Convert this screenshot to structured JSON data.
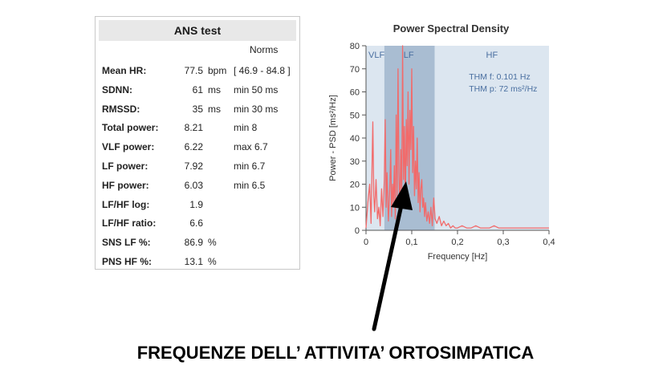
{
  "ans": {
    "title": "ANS test",
    "norms_header": "Norms",
    "rows": [
      {
        "label": "Mean HR:",
        "value": "77.5",
        "unit": "bpm",
        "norm": "[ 46.9 - 84.8 ]"
      },
      {
        "label": "SDNN:",
        "value": "61",
        "unit": "ms",
        "norm": "min 50 ms"
      },
      {
        "label": "RMSSD:",
        "value": "35",
        "unit": "ms",
        "norm": "min 30 ms"
      },
      {
        "label": "Total power:",
        "value": "8.21",
        "unit": "",
        "norm": "min 8"
      },
      {
        "label": "VLF power:",
        "value": "6.22",
        "unit": "",
        "norm": "max 6.7"
      },
      {
        "label": "LF power:",
        "value": "7.92",
        "unit": "",
        "norm": "min 6.7"
      },
      {
        "label": "HF power:",
        "value": "6.03",
        "unit": "",
        "norm": "min 6.5"
      },
      {
        "label": "LF/HF log:",
        "value": "1.9",
        "unit": "",
        "norm": ""
      },
      {
        "label": "LF/HF ratio:",
        "value": "6.6",
        "unit": "",
        "norm": ""
      },
      {
        "label": "SNS LF %:",
        "value": "86.9",
        "unit": "%",
        "norm": ""
      },
      {
        "label": "PNS HF %:",
        "value": "13.1",
        "unit": "%",
        "norm": ""
      }
    ]
  },
  "chart_data": {
    "type": "line",
    "title": "Power Spectral Density",
    "xlabel": "Frequency [Hz]",
    "ylabel": "Power - PSD [ms²/Hz]",
    "xlim": [
      0,
      0.4
    ],
    "ylim": [
      0,
      80
    ],
    "x_ticks": [
      0,
      0.1,
      0.2,
      0.3,
      0.4
    ],
    "x_tick_labels": [
      "0",
      "0,1",
      "0,2",
      "0,3",
      "0,4"
    ],
    "y_ticks": [
      0,
      10,
      20,
      30,
      40,
      50,
      60,
      70,
      80
    ],
    "bands": [
      {
        "name": "VLF",
        "from": 0.0,
        "to": 0.04,
        "color": "#dce6f0"
      },
      {
        "name": "LF",
        "from": 0.04,
        "to": 0.15,
        "color": "#a9bdd2"
      },
      {
        "name": "HF",
        "from": 0.15,
        "to": 0.4,
        "color": "#dce6f0"
      }
    ],
    "annotations": [
      "THM f: 0.101 Hz",
      "THM p: 72 ms²/Hz"
    ],
    "series": [
      {
        "color": "#f26a6a",
        "x": [
          0.0,
          0.004,
          0.008,
          0.011,
          0.015,
          0.017,
          0.019,
          0.022,
          0.025,
          0.028,
          0.031,
          0.034,
          0.037,
          0.04,
          0.042,
          0.044,
          0.046,
          0.049,
          0.052,
          0.054,
          0.056,
          0.058,
          0.06,
          0.062,
          0.064,
          0.066,
          0.068,
          0.07,
          0.072,
          0.074,
          0.076,
          0.078,
          0.08,
          0.082,
          0.084,
          0.086,
          0.088,
          0.09,
          0.092,
          0.094,
          0.096,
          0.098,
          0.1,
          0.102,
          0.104,
          0.106,
          0.108,
          0.11,
          0.112,
          0.114,
          0.116,
          0.118,
          0.12,
          0.122,
          0.124,
          0.126,
          0.128,
          0.13,
          0.133,
          0.136,
          0.139,
          0.142,
          0.145,
          0.148,
          0.151,
          0.155,
          0.16,
          0.165,
          0.17,
          0.175,
          0.18,
          0.185,
          0.19,
          0.195,
          0.2,
          0.21,
          0.22,
          0.23,
          0.24,
          0.25,
          0.26,
          0.27,
          0.28,
          0.29,
          0.3,
          0.31,
          0.32,
          0.33,
          0.34,
          0.35,
          0.36,
          0.37,
          0.38,
          0.39,
          0.4
        ],
        "y": [
          1,
          12,
          20,
          3,
          47,
          15,
          8,
          22,
          5,
          10,
          2,
          18,
          6,
          22,
          48,
          10,
          25,
          4,
          18,
          35,
          6,
          20,
          12,
          28,
          5,
          50,
          15,
          70,
          25,
          8,
          35,
          15,
          80,
          22,
          45,
          10,
          48,
          28,
          60,
          20,
          52,
          35,
          70,
          25,
          45,
          15,
          30,
          18,
          40,
          12,
          25,
          8,
          18,
          22,
          10,
          14,
          6,
          12,
          4,
          8,
          3,
          10,
          2,
          14,
          5,
          3,
          6,
          2,
          4,
          2,
          3,
          1,
          2,
          1,
          1,
          2,
          1,
          1,
          2,
          1,
          1,
          1,
          2,
          1,
          1,
          1,
          1,
          1,
          1,
          1,
          1,
          1,
          1,
          1,
          1
        ]
      }
    ]
  },
  "caption": "FREQUENZE DELL’ ATTIVITA’ ORTOSIMPATICA"
}
